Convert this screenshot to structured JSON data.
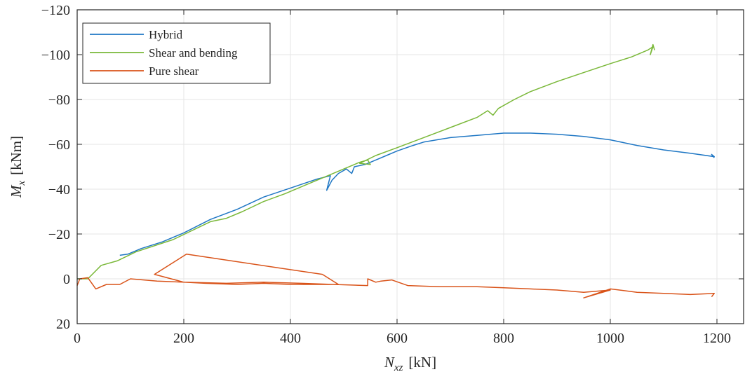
{
  "chart_data": {
    "type": "line",
    "title": "",
    "xlabel": {
      "base": "N",
      "sub": "xz",
      "unit": "[kN]"
    },
    "ylabel": {
      "base": "M",
      "sub": "x",
      "unit": "[kNm]"
    },
    "xlim": [
      0,
      1250
    ],
    "ylim": [
      20,
      -120
    ],
    "y_axis_reversed": true,
    "xticks": [
      0,
      200,
      400,
      600,
      800,
      1000,
      1200
    ],
    "yticks": [
      -120,
      -100,
      -80,
      -60,
      -40,
      -20,
      0,
      20
    ],
    "xtick_labels": [
      "0",
      "200",
      "400",
      "600",
      "800",
      "1000",
      "1200"
    ],
    "ytick_labels": [
      "−120",
      "−100",
      "−80",
      "−60",
      "−40",
      "−20",
      "0",
      "20"
    ],
    "grid": true,
    "legend_position": "top-left",
    "series": [
      {
        "name": "Hybrid",
        "color": "#1f77c4",
        "points": [
          [
            80,
            -10.5
          ],
          [
            95,
            -11
          ],
          [
            120,
            -13.5
          ],
          [
            160,
            -16.5
          ],
          [
            200,
            -20.5
          ],
          [
            250,
            -26.5
          ],
          [
            300,
            -31
          ],
          [
            350,
            -36.5
          ],
          [
            400,
            -40.5
          ],
          [
            450,
            -44.5
          ],
          [
            475,
            -46
          ],
          [
            468,
            -39.5
          ],
          [
            478,
            -44
          ],
          [
            490,
            -47
          ],
          [
            505,
            -49
          ],
          [
            515,
            -47
          ],
          [
            520,
            -50
          ],
          [
            540,
            -51
          ],
          [
            560,
            -53
          ],
          [
            580,
            -55
          ],
          [
            600,
            -57
          ],
          [
            630,
            -59.5
          ],
          [
            650,
            -61
          ],
          [
            700,
            -63
          ],
          [
            750,
            -64
          ],
          [
            800,
            -65
          ],
          [
            850,
            -65
          ],
          [
            900,
            -64.5
          ],
          [
            950,
            -63.5
          ],
          [
            1000,
            -62
          ],
          [
            1050,
            -59.5
          ],
          [
            1100,
            -57.5
          ],
          [
            1150,
            -56
          ],
          [
            1195,
            -54.5
          ],
          [
            1190,
            -55.5
          ],
          [
            1195,
            -54
          ]
        ]
      },
      {
        "name": "Shear and bending",
        "color": "#7ab839",
        "points": [
          [
            0,
            0
          ],
          [
            20,
            0
          ],
          [
            45,
            -6
          ],
          [
            75,
            -8
          ],
          [
            110,
            -12
          ],
          [
            180,
            -17.5
          ],
          [
            250,
            -25.5
          ],
          [
            280,
            -27
          ],
          [
            310,
            -30
          ],
          [
            350,
            -34.5
          ],
          [
            390,
            -38
          ],
          [
            430,
            -42
          ],
          [
            470,
            -46
          ],
          [
            500,
            -49
          ],
          [
            530,
            -52
          ],
          [
            545,
            -53
          ],
          [
            550,
            -51
          ],
          [
            530,
            -51.5
          ],
          [
            560,
            -55
          ],
          [
            600,
            -58.5
          ],
          [
            650,
            -63
          ],
          [
            700,
            -67.5
          ],
          [
            750,
            -72
          ],
          [
            770,
            -75
          ],
          [
            780,
            -73
          ],
          [
            790,
            -76
          ],
          [
            820,
            -80
          ],
          [
            850,
            -83.5
          ],
          [
            900,
            -88
          ],
          [
            950,
            -92
          ],
          [
            1000,
            -96
          ],
          [
            1040,
            -99
          ],
          [
            1070,
            -102
          ],
          [
            1080,
            -103.5
          ],
          [
            1075,
            -100
          ],
          [
            1080,
            -104.5
          ],
          [
            1083,
            -102
          ]
        ]
      },
      {
        "name": "Pure shear",
        "color": "#d95319",
        "points": [
          [
            0,
            3
          ],
          [
            5,
            0
          ],
          [
            20,
            -0.5
          ],
          [
            35,
            4.5
          ],
          [
            55,
            2.5
          ],
          [
            80,
            2.5
          ],
          [
            100,
            0
          ],
          [
            150,
            1
          ],
          [
            200,
            1.5
          ],
          [
            240,
            2
          ],
          [
            300,
            2.5
          ],
          [
            350,
            2
          ],
          [
            400,
            2.5
          ],
          [
            450,
            2.5
          ],
          [
            490,
            2.5
          ],
          [
            460,
            -2
          ],
          [
            360,
            -5.5
          ],
          [
            205,
            -11
          ],
          [
            145,
            -2
          ],
          [
            200,
            1.5
          ],
          [
            280,
            2
          ],
          [
            350,
            1.5
          ],
          [
            420,
            2
          ],
          [
            480,
            2.5
          ],
          [
            545,
            3
          ],
          [
            545,
            0
          ],
          [
            560,
            1.5
          ],
          [
            570,
            1
          ],
          [
            590,
            0.5
          ],
          [
            620,
            3
          ],
          [
            680,
            3.5
          ],
          [
            750,
            3.5
          ],
          [
            800,
            4
          ],
          [
            850,
            4.5
          ],
          [
            900,
            5
          ],
          [
            950,
            6
          ],
          [
            1000,
            5
          ],
          [
            950,
            8.5
          ],
          [
            1000,
            4.5
          ],
          [
            1050,
            6
          ],
          [
            1100,
            6.5
          ],
          [
            1150,
            7
          ],
          [
            1195,
            6.5
          ],
          [
            1190,
            8
          ]
        ]
      }
    ]
  }
}
